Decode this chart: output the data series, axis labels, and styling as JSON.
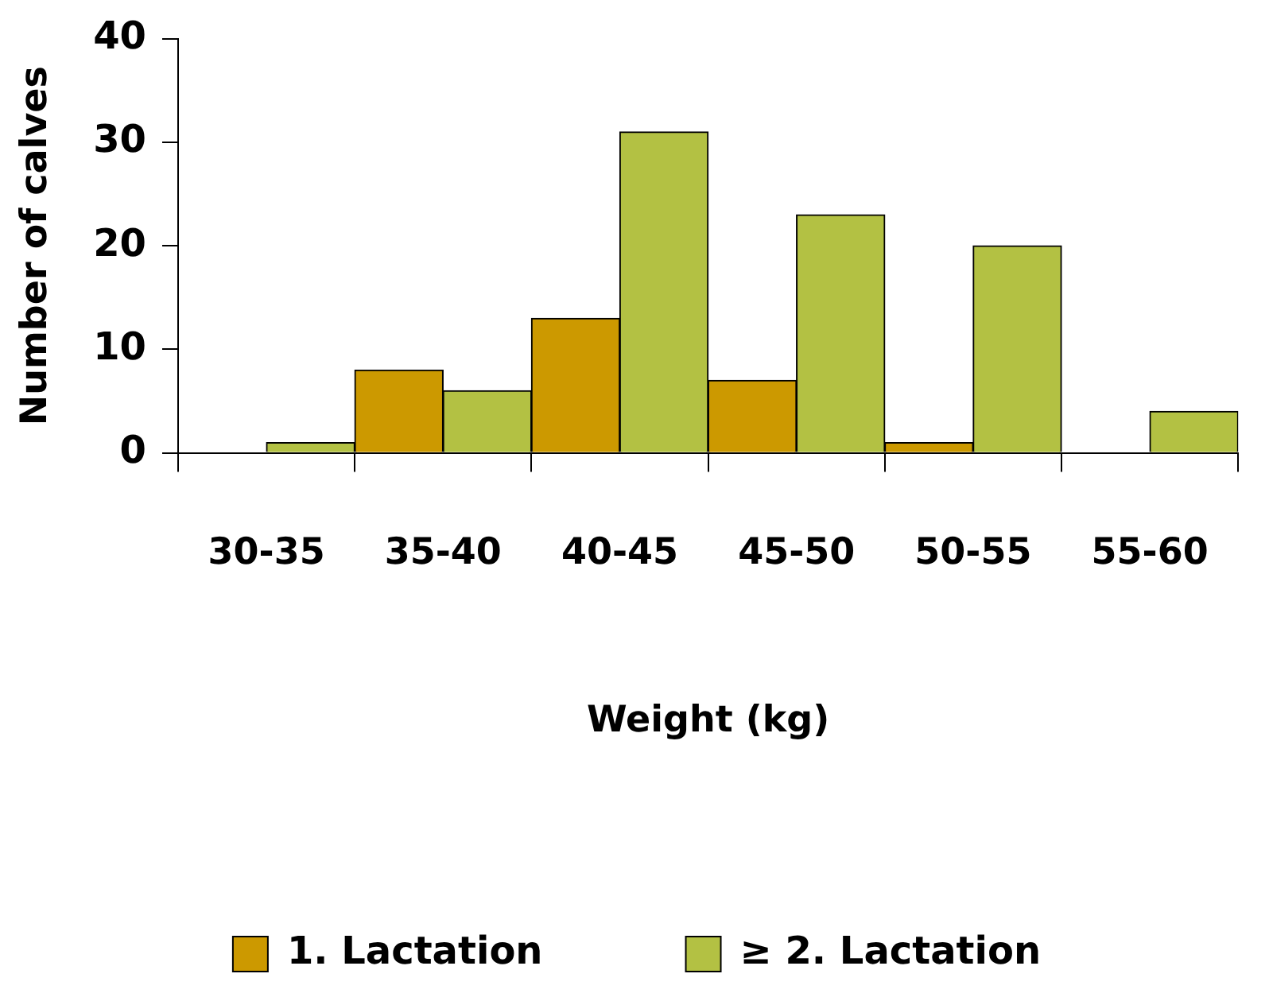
{
  "chart_data": {
    "type": "bar",
    "xlabel": "Weight (kg)",
    "ylabel": "Number of calves",
    "categories": [
      "30-35",
      "35-40",
      "40-45",
      "45-50",
      "50-55",
      "55-60"
    ],
    "series": [
      {
        "name": "1. Lactation",
        "color": "#cc9900",
        "values": [
          0,
          8,
          13,
          7,
          1,
          0
        ]
      },
      {
        "name": "≥ 2. Lactation",
        "color": "#b3c143",
        "values": [
          1,
          6,
          31,
          23,
          20,
          4
        ]
      }
    ],
    "ylim": [
      0,
      40
    ],
    "yticks": [
      0,
      10,
      20,
      30,
      40
    ],
    "grid": false,
    "legend": "bottom"
  }
}
